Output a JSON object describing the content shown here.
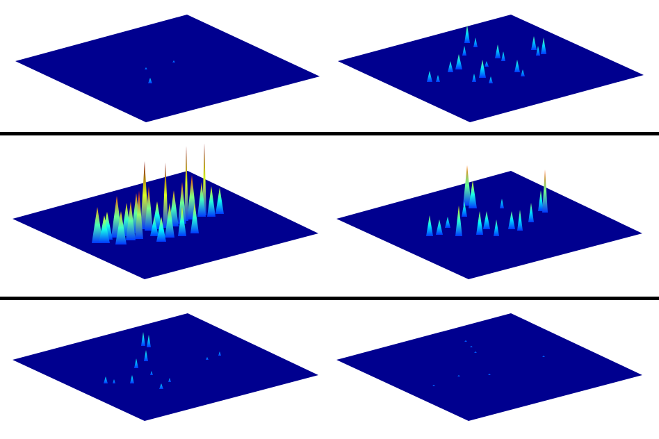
{
  "colors": {
    "background": "#ffffff",
    "separator": "#000000",
    "plane": "#00008f",
    "colormap": "jet"
  },
  "rows": [
    {
      "panels": [
        {
          "name": "row1-left",
          "density": "very-low"
        },
        {
          "name": "row1-right",
          "density": "medium"
        }
      ]
    },
    {
      "panels": [
        {
          "name": "row2-left",
          "density": "high"
        },
        {
          "name": "row2-right",
          "density": "medium"
        }
      ]
    },
    {
      "panels": [
        {
          "name": "row3-left",
          "density": "low"
        },
        {
          "name": "row3-right",
          "density": "very-low"
        }
      ]
    }
  ]
}
